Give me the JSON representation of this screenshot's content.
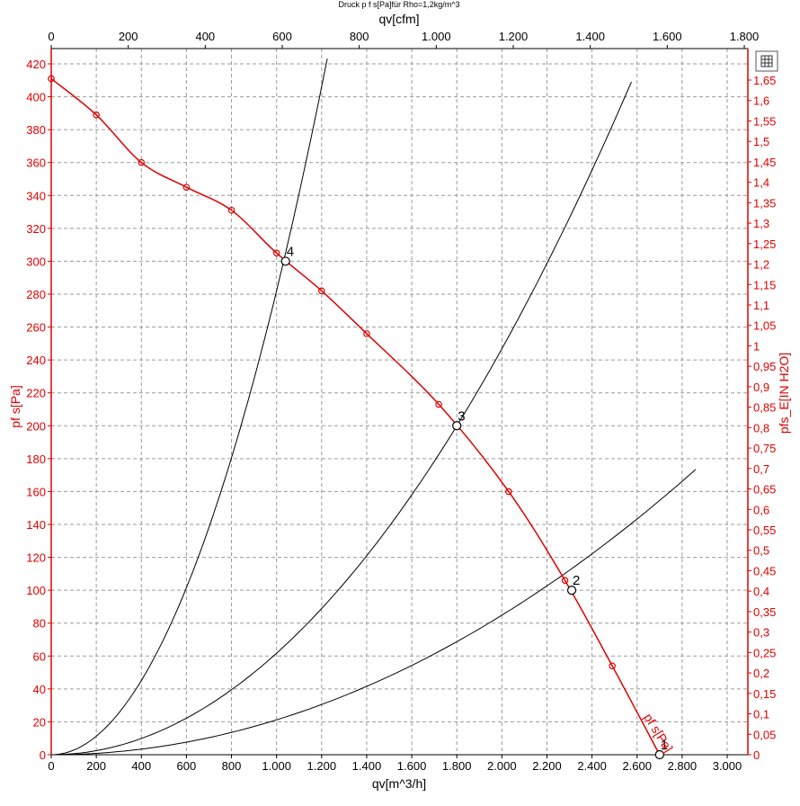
{
  "chart_data": {
    "type": "line",
    "title": "Druck p f s[Pa]für Rho=1,2kg/m^3",
    "xlabel_bottom": "qv[m^3/h]",
    "xlabel_top": "qv[cfm]",
    "ylabel_left": "pf s[Pa]",
    "ylabel_right": "pfs_E[IN H2O]",
    "x_bottom_range": [
      0,
      3000
    ],
    "x_top_range": [
      0,
      1800
    ],
    "y_left_range": [
      0,
      420
    ],
    "y_right_range": [
      0,
      1.65
    ],
    "x_bottom_ticks": [
      "0",
      "200",
      "400",
      "600",
      "800",
      "1.000",
      "1.200",
      "1.400",
      "1.600",
      "1.800",
      "2.000",
      "2.200",
      "2.400",
      "2.600",
      "2.800",
      "3.000"
    ],
    "x_top_ticks": [
      "0",
      "200",
      "400",
      "600",
      "800",
      "1.000",
      "1.200",
      "1.400",
      "1.600",
      "1.800"
    ],
    "y_left_ticks": [
      "0",
      "20",
      "40",
      "60",
      "80",
      "100",
      "120",
      "140",
      "160",
      "180",
      "200",
      "220",
      "240",
      "260",
      "280",
      "300",
      "320",
      "340",
      "360",
      "380",
      "400",
      "420"
    ],
    "y_right_ticks": [
      "0",
      "0,05",
      "0,1",
      "0,15",
      "0,2",
      "0,25",
      "0,3",
      "0,35",
      "0,4",
      "0,45",
      "0,5",
      "0,55",
      "0,6",
      "0,65",
      "0,7",
      "0,75",
      "0,8",
      "0,85",
      "0,9",
      "0,95",
      "1",
      "1,05",
      "1,1",
      "1,15",
      "1,2",
      "1,25",
      "1,3",
      "1,35",
      "1,4",
      "1,45",
      "1,5",
      "1,55",
      "1,6",
      "1,65"
    ],
    "grid": true,
    "series": [
      {
        "name": "pf s[Pa]",
        "color": "#e00000",
        "x": [
          0,
          200,
          400,
          600,
          800,
          1000,
          1200,
          1400,
          1720,
          2030,
          2280,
          2490,
          2700
        ],
        "values": [
          411,
          389,
          360,
          345,
          331,
          305,
          282,
          256,
          213,
          160,
          106,
          54,
          0
        ]
      }
    ],
    "system_curves": [
      {
        "color": "#000000",
        "k": 2.12e-05,
        "x_max": 2860
      },
      {
        "color": "#000000",
        "k": 6.17e-05,
        "x_max": 2575
      },
      {
        "color": "#000000",
        "k": 0.000282,
        "x_max": 1225
      }
    ],
    "operating_points": [
      {
        "label": "1",
        "x": 2700,
        "y": 0
      },
      {
        "label": "2",
        "x": 2310,
        "y": 100
      },
      {
        "label": "3",
        "x": 1800,
        "y": 200
      },
      {
        "label": "4",
        "x": 1040,
        "y": 300
      }
    ],
    "curve_label": "pf s[Pa]"
  },
  "toolbar": {
    "icon": "table-icon"
  }
}
